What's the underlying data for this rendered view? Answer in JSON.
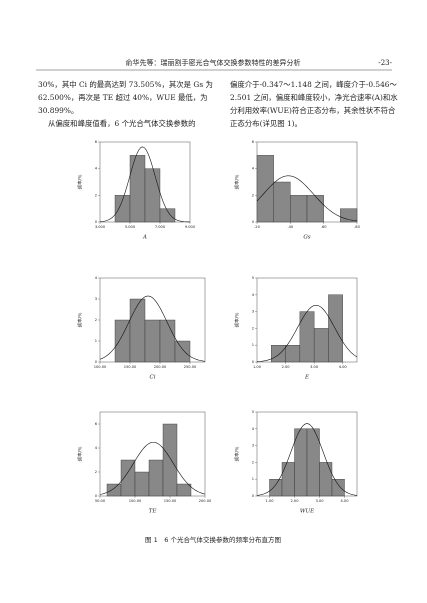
{
  "header": {
    "title": "俞华先等：瑞丽割手密光合气体交换参数特性的差异分析",
    "page": "-23-"
  },
  "body": {
    "left": [
      "30%，其中 Ci 的最高达到 73.505%，其次是 Gs 为",
      "62.500%，再次是 TE 超过 40%，WUE 最低，为",
      "30.899%。",
      "从偏度和峰度值看，6 个光合气体交换参数的"
    ],
    "right": [
      "偏度介于-0.347～1.148 之间，峰度介于-0.546～",
      "2.501 之间，偏度和峰度较小，净光合速率(A)和水",
      "分利用效率(WUE)符合正态分布，其余性状不符合",
      "正态分布(详见图 1)。"
    ]
  },
  "caption": "图 1　6 个光合气体交换参数的频率分布直方图",
  "chart_data": [
    {
      "type": "histogram",
      "xlabel": "A",
      "ylabel": "频率/%",
      "color": "#888888",
      "bins": [
        4,
        5,
        6,
        7,
        8
      ],
      "values": [
        2,
        5,
        4,
        1
      ],
      "xlim": [
        3,
        9
      ],
      "xticks": [
        {
          "value": 3,
          "label": "3.000"
        },
        {
          "value": 5,
          "label": "5.000"
        },
        {
          "value": 7,
          "label": "7.000"
        },
        {
          "value": 9,
          "label": "9.000"
        }
      ],
      "ylim": [
        0,
        6
      ],
      "yticks": [
        0,
        2,
        4,
        6
      ]
    },
    {
      "type": "histogram",
      "xlabel": "Gs",
      "ylabel": "频率/%",
      "color": "#888888",
      "bins": [
        0.2,
        0.3,
        0.4,
        0.5,
        0.6,
        0.7,
        0.8
      ],
      "values": [
        5,
        3,
        2,
        2,
        0,
        1
      ],
      "xlim": [
        0.2,
        0.8
      ],
      "xticks": [
        {
          "value": 0.2,
          "label": ".20"
        },
        {
          "value": 0.4,
          "label": ".40"
        },
        {
          "value": 0.6,
          "label": ".60"
        },
        {
          "value": 0.8,
          "label": ".80"
        }
      ],
      "ylim": [
        0,
        6
      ],
      "yticks": [
        0,
        2,
        4,
        6
      ]
    },
    {
      "type": "histogram",
      "xlabel": "Ci",
      "ylabel": "频率/%",
      "color": "#888888",
      "bins": [
        125,
        150,
        175,
        200,
        225,
        250
      ],
      "values": [
        2,
        3,
        2,
        2,
        1
      ],
      "xlim": [
        100,
        275
      ],
      "xticks": [
        {
          "value": 100,
          "label": "100.00"
        },
        {
          "value": 150,
          "label": "150.00"
        },
        {
          "value": 200,
          "label": "200.00"
        },
        {
          "value": 250,
          "label": "250.00"
        }
      ],
      "ylim": [
        0,
        4
      ],
      "yticks": [
        0,
        1,
        2,
        3,
        4
      ]
    },
    {
      "type": "histogram",
      "xlabel": "E",
      "ylabel": "频率/%",
      "color": "#888888",
      "bins": [
        1.5,
        2,
        2.5,
        3,
        3.5,
        4
      ],
      "values": [
        1,
        1,
        3,
        2,
        4
      ],
      "xlim": [
        1,
        4.5
      ],
      "xticks": [
        {
          "value": 1,
          "label": "1.00"
        },
        {
          "value": 2,
          "label": "2.00"
        },
        {
          "value": 3,
          "label": "3.00"
        },
        {
          "value": 4,
          "label": "4.00"
        }
      ],
      "ylim": [
        0,
        5
      ],
      "yticks": [
        0,
        1,
        2,
        3,
        4,
        5
      ]
    },
    {
      "type": "histogram",
      "xlabel": "TE",
      "ylabel": "频率/%",
      "color": "#888888",
      "bins": [
        60,
        80,
        100,
        120,
        140,
        160,
        180
      ],
      "values": [
        1,
        3,
        2,
        3,
        6,
        1
      ],
      "xlim": [
        50,
        200
      ],
      "xticks": [
        {
          "value": 50,
          "label": "50.00"
        },
        {
          "value": 100,
          "label": "100.00"
        },
        {
          "value": 150,
          "label": "150.00"
        },
        {
          "value": 200,
          "label": "200.00"
        }
      ],
      "ylim": [
        0,
        7
      ],
      "yticks": [
        0,
        2,
        4,
        6
      ]
    },
    {
      "type": "histogram",
      "xlabel": "WUE",
      "ylabel": "频率/%",
      "color": "#888888",
      "bins": [
        1,
        1.5,
        2,
        2.5,
        3,
        3.5,
        4
      ],
      "values": [
        1,
        2,
        4,
        4,
        2,
        1
      ],
      "xlim": [
        0.5,
        4.5
      ],
      "xticks": [
        {
          "value": 1,
          "label": "1.00"
        },
        {
          "value": 2,
          "label": "2.00"
        },
        {
          "value": 3,
          "label": "3.00"
        },
        {
          "value": 4,
          "label": "4.00"
        }
      ],
      "ylim": [
        0,
        5
      ],
      "yticks": [
        0,
        1,
        2,
        3,
        4,
        5
      ]
    }
  ]
}
